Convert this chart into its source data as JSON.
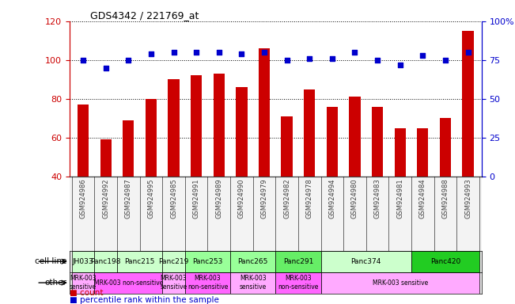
{
  "title": "GDS4342 / 221769_at",
  "gsm_labels": [
    "GSM924986",
    "GSM924992",
    "GSM924987",
    "GSM924995",
    "GSM924985",
    "GSM924991",
    "GSM924989",
    "GSM924990",
    "GSM924979",
    "GSM924982",
    "GSM924978",
    "GSM924994",
    "GSM924980",
    "GSM924983",
    "GSM924981",
    "GSM924984",
    "GSM924988",
    "GSM924993"
  ],
  "bar_values": [
    77,
    59,
    69,
    80,
    90,
    92,
    93,
    86,
    106,
    71,
    85,
    76,
    81,
    76,
    65,
    65,
    70,
    115
  ],
  "dot_values": [
    75,
    70,
    75,
    79,
    80,
    80,
    80,
    79,
    80,
    75,
    76,
    76,
    80,
    75,
    72,
    78,
    75,
    80
  ],
  "bar_color": "#cc0000",
  "dot_color": "#0000cc",
  "ylim_left": [
    40,
    120
  ],
  "ylim_right": [
    0,
    100
  ],
  "yticks_left": [
    40,
    60,
    80,
    100,
    120
  ],
  "yticks_right": [
    0,
    25,
    50,
    75,
    100
  ],
  "yticklabels_right": [
    "0",
    "25",
    "50",
    "75",
    "100%"
  ],
  "cell_line_label": "cell line",
  "other_label": "other",
  "cell_lines": [
    {
      "name": "JH033",
      "start": 0,
      "end": 1,
      "color": "#ccffcc"
    },
    {
      "name": "Panc198",
      "start": 1,
      "end": 2,
      "color": "#ccffcc"
    },
    {
      "name": "Panc215",
      "start": 2,
      "end": 4,
      "color": "#ccffcc"
    },
    {
      "name": "Panc219",
      "start": 4,
      "end": 5,
      "color": "#ccffcc"
    },
    {
      "name": "Panc253",
      "start": 5,
      "end": 7,
      "color": "#99ff99"
    },
    {
      "name": "Panc265",
      "start": 7,
      "end": 9,
      "color": "#99ff99"
    },
    {
      "name": "Panc291",
      "start": 9,
      "end": 11,
      "color": "#66ee66"
    },
    {
      "name": "Panc374",
      "start": 11,
      "end": 15,
      "color": "#ccffcc"
    },
    {
      "name": "Panc420",
      "start": 15,
      "end": 18,
      "color": "#22cc22"
    }
  ],
  "other_groups": [
    {
      "label": "MRK-003\nsensitive",
      "start": 0,
      "end": 1,
      "color": "#ffaaff"
    },
    {
      "label": "MRK-003 non-sensitive",
      "start": 1,
      "end": 4,
      "color": "#ff66ff"
    },
    {
      "label": "MRK-003\nsensitive",
      "start": 4,
      "end": 5,
      "color": "#ffaaff"
    },
    {
      "label": "MRK-003\nnon-sensitive",
      "start": 5,
      "end": 7,
      "color": "#ff66ff"
    },
    {
      "label": "MRK-003\nsensitive",
      "start": 7,
      "end": 9,
      "color": "#ffaaff"
    },
    {
      "label": "MRK-003\nnon-sensitive",
      "start": 9,
      "end": 11,
      "color": "#ff66ff"
    },
    {
      "label": "MRK-003 sensitive",
      "start": 11,
      "end": 18,
      "color": "#ffaaff"
    }
  ],
  "bg_color": "#ffffff",
  "grid_color": "#000000",
  "legend_count_color": "#cc0000",
  "legend_pct_color": "#0000cc"
}
